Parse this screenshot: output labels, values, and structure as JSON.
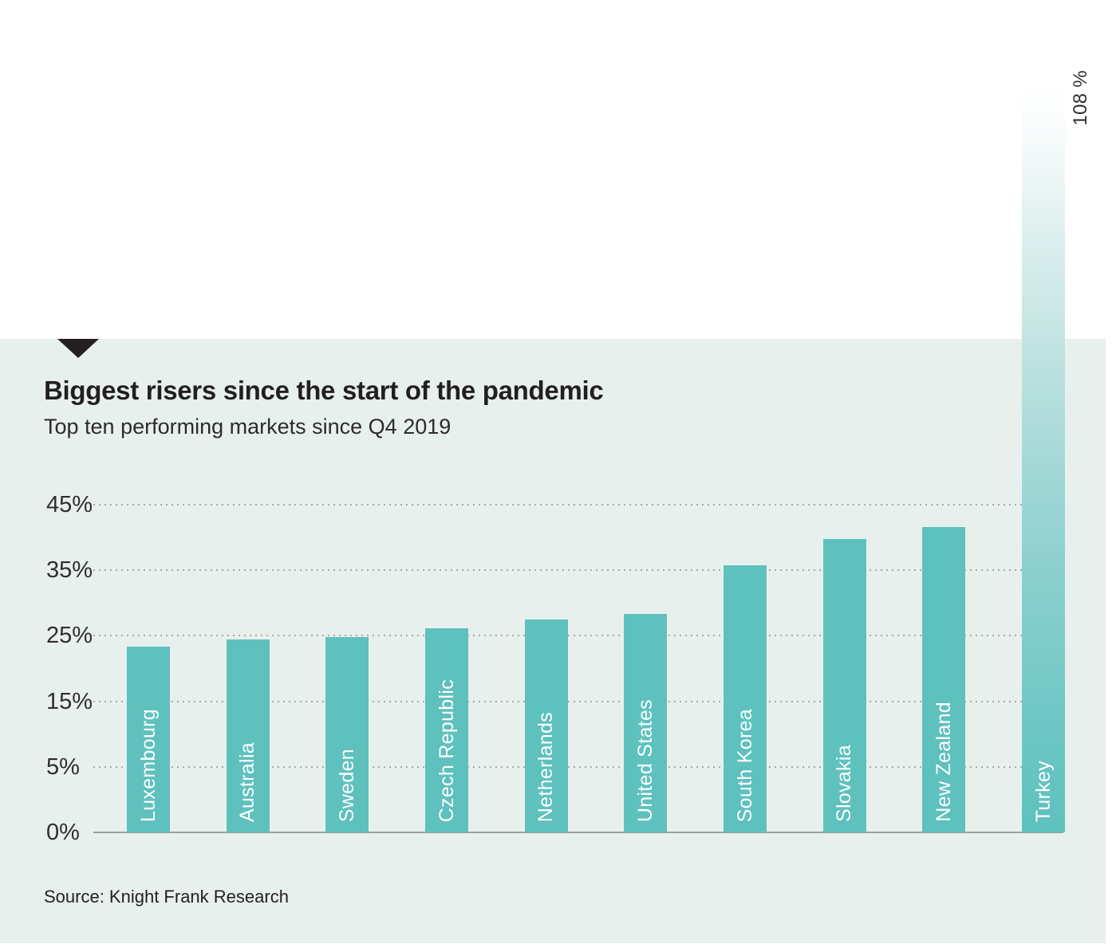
{
  "page": {
    "background": "#ffffff"
  },
  "panel": {
    "background": "#e8f0ed",
    "marker_color": "#242021"
  },
  "header": {
    "title": "Biggest risers since the start of the pandemic",
    "subtitle": "Top ten performing markets since Q4 2019"
  },
  "footer": {
    "source": "Source: Knight Frank Research"
  },
  "chart_data": {
    "type": "bar",
    "title": "Biggest risers since the start of the pandemic",
    "subtitle": "Top ten performing markets since Q4 2019",
    "categories": [
      "Luxembourg",
      "Australia",
      "Sweden",
      "Czech Republic",
      "Netherlands",
      "United States",
      "South Korea",
      "Slovakia",
      "New Zealand",
      "Turkey"
    ],
    "values": [
      23.3,
      24.4,
      24.8,
      26.2,
      27.5,
      28.3,
      35.8,
      39.8,
      41.6,
      108
    ],
    "unit": "%",
    "xlabel": "",
    "ylabel": "",
    "yticks": [
      {
        "label": "0%",
        "value": 0
      },
      {
        "label": "5%",
        "value": 5
      },
      {
        "label": "15%",
        "value": 15
      },
      {
        "label": "25%",
        "value": 25
      },
      {
        "label": "35%",
        "value": 35
      },
      {
        "label": "45%",
        "value": 45
      }
    ],
    "axis_note": "ticks equally spaced: 0-5 then steps of 10 up to 45; bars above 45 overflow the plot",
    "grid": "horizontal dotted lines at each tick above 0, solid baseline at 0",
    "legend": "none",
    "bar_color": "#5ec1be",
    "bar_label_color": "#ffffff",
    "overflow_bar": {
      "category": "Turkey",
      "value": 108,
      "annotation": "108 %",
      "style": "bar fades to white toward its top, extends above panel"
    }
  }
}
